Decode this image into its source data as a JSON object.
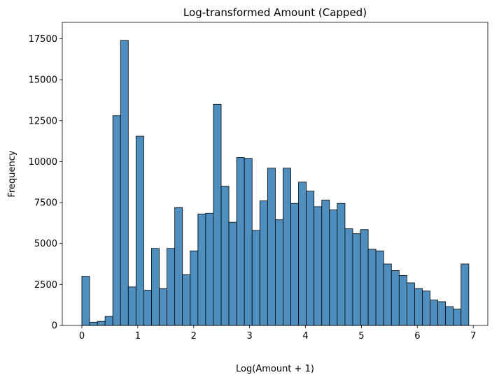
{
  "chart_data": {
    "type": "bar",
    "title": "Log-transformed Amount (Capped)",
    "xlabel": "Log(Amount + 1)",
    "ylabel": "Frequency",
    "xlim": [
      -0.35,
      7.26
    ],
    "ylim": [
      0,
      18500
    ],
    "x_ticks": [
      0,
      1,
      2,
      3,
      4,
      5,
      6,
      7
    ],
    "x_tick_labels": [
      "0",
      "1",
      "2",
      "3",
      "4",
      "5",
      "6",
      "7"
    ],
    "y_ticks": [
      0,
      2500,
      5000,
      7500,
      10000,
      12500,
      15000,
      17500
    ],
    "y_tick_labels": [
      "0",
      "2500",
      "5000",
      "7500",
      "10000",
      "12500",
      "15000",
      "17500"
    ],
    "grid": false,
    "bar_color": "#4e8fc0",
    "edge_color": "#000000",
    "bin_start": 0,
    "bin_end": 6.92,
    "values": [
      3000,
      200,
      250,
      550,
      12800,
      17400,
      2350,
      11550,
      2150,
      4700,
      2250,
      4700,
      7200,
      3100,
      4550,
      6800,
      6850,
      13500,
      8500,
      6300,
      10250,
      10200,
      5800,
      7600,
      9600,
      6450,
      9600,
      7450,
      8750,
      8200,
      7250,
      7650,
      7050,
      7450,
      5900,
      5600,
      5850,
      4650,
      4550,
      3750,
      3350,
      3050,
      2600,
      2250,
      2100,
      1550,
      1450,
      1150,
      1000,
      3750
    ]
  }
}
